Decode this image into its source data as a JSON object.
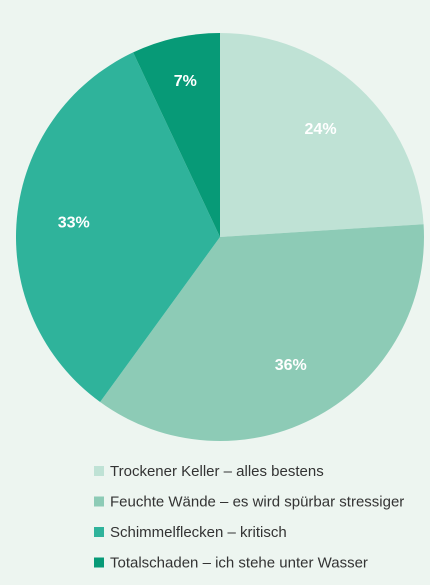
{
  "chart_data": {
    "type": "pie",
    "categories": [
      "Trockener Keller – alles bestens",
      "Feuchte Wände – es wird spürbar stressiger",
      "Schimmelflecken – kritisch",
      "Totalschaden – ich stehe unter Wasser"
    ],
    "values": [
      24,
      36,
      33,
      7
    ],
    "value_labels": [
      "24%",
      "36%",
      "33%",
      "7%"
    ],
    "colors": [
      "#bfe2d5",
      "#8dcbb6",
      "#2fb39b",
      "#079a77"
    ],
    "legend": "bottom"
  }
}
